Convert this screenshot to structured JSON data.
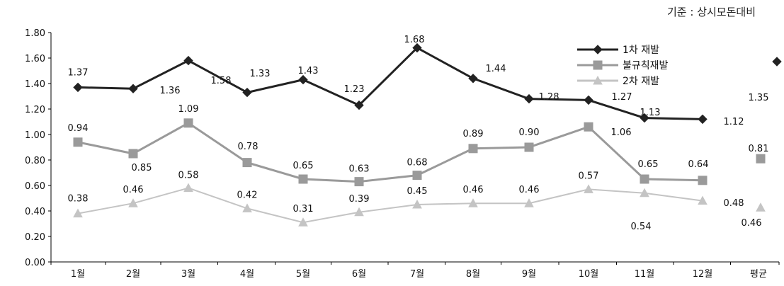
{
  "note": "기준 : 상시모돈대비",
  "chart_data": {
    "type": "line",
    "categories": [
      "1월",
      "2월",
      "3월",
      "4월",
      "5월",
      "6월",
      "7월",
      "8월",
      "9월",
      "10월",
      "11월",
      "12월"
    ],
    "average_category": "평균",
    "y_ticks": [
      "0.00",
      "0.20",
      "0.40",
      "0.60",
      "0.80",
      "1.00",
      "1.20",
      "1.40",
      "1.60",
      "1.80"
    ],
    "ylim": [
      0,
      1.8
    ],
    "grid": false,
    "legend_position": "top-right",
    "series": [
      {
        "name": "1차 재발",
        "color": "#222222",
        "marker": "diamond",
        "values": [
          1.37,
          1.36,
          1.58,
          1.33,
          1.43,
          1.23,
          1.68,
          1.44,
          1.28,
          1.27,
          1.13,
          1.12
        ],
        "labels": [
          "1.37",
          "1.36",
          "1.58",
          "1.33",
          "1.43",
          "1.23",
          "1.68",
          "1.44",
          "1.28",
          "1.27",
          "1.13",
          "1.12"
        ],
        "average": 1.35,
        "average_label": "1.35"
      },
      {
        "name": "불규칙재발",
        "color": "#9a9a9a",
        "marker": "square",
        "values": [
          0.94,
          0.85,
          1.09,
          0.78,
          0.65,
          0.63,
          0.68,
          0.89,
          0.9,
          1.06,
          0.65,
          0.64
        ],
        "labels": [
          "0.94",
          "0.85",
          "1.09",
          "0.78",
          "0.65",
          "0.63",
          "0.68",
          "0.89",
          "0.90",
          "1.06",
          "0.65",
          "0.64"
        ],
        "average": 0.81,
        "average_label": "0.81"
      },
      {
        "name": "2차 재발",
        "color": "#c4c4c4",
        "marker": "triangle",
        "values": [
          0.38,
          0.46,
          0.58,
          0.42,
          0.31,
          0.39,
          0.45,
          0.46,
          0.46,
          0.57,
          0.54,
          0.48
        ],
        "labels": [
          "0.38",
          "0.46",
          "0.58",
          "0.42",
          "0.31",
          "0.39",
          "0.45",
          "0.46",
          "0.46",
          "0.57",
          "0.54",
          "0.48"
        ],
        "average": 0.46,
        "average_label": "0.46"
      }
    ]
  }
}
